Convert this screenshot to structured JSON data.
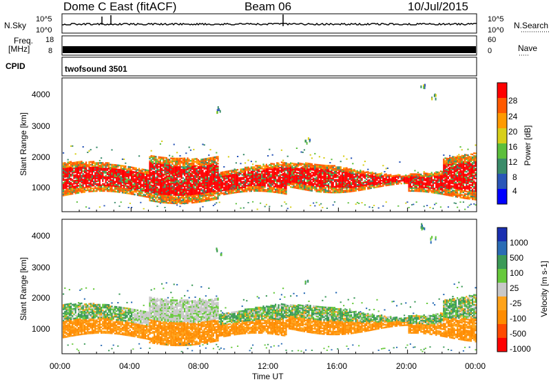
{
  "header": {
    "radar": "Dome C East (fitACF)",
    "beam": "Beam 06",
    "date": "10/Jul/2015"
  },
  "param_panels": {
    "nsky_label": "N.Sky",
    "nsky_ticks": [
      "10^5",
      "10^0"
    ],
    "nsearch_label": "N.Search",
    "nsearch_ticks": [
      "10^5",
      "10^0"
    ],
    "freq_label_1": "Freq.",
    "freq_label_2": "[MHz]",
    "freq_ticks": [
      "18",
      "8"
    ],
    "nave_label": "Nave",
    "nave_ticks": [
      "60",
      "0"
    ],
    "cpid_label": "CPID",
    "cpid_value": "twofsound 3501"
  },
  "colors": {
    "power_scale": [
      "#0000ff",
      "#2a56b8",
      "#3a8c6a",
      "#5cbf3c",
      "#d7cf1a",
      "#ff9a00",
      "#ff5a00",
      "#ff0000"
    ],
    "velocity_scale": [
      "#ff0000",
      "#ff4a00",
      "#ff8c00",
      "#ffa31a",
      "#c8c8c8",
      "#67c93c",
      "#3b9a57",
      "#2a6cb5",
      "#1a2fb0"
    ]
  },
  "chart_data": [
    {
      "type": "heatmap",
      "title": "Power",
      "xlabel": "Time UT",
      "ylabel": "Slant Range [km]",
      "colorbar_label": "Power [dB]",
      "colorbar_ticks": [
        "28",
        "24",
        "20",
        "16",
        "12",
        "8",
        "4"
      ],
      "x_ticks": [
        "00:00",
        "04:00",
        "08:00",
        "12:00",
        "16:00",
        "20:00",
        "00:00"
      ],
      "y_ticks": [
        "4000",
        "3000",
        "2000",
        "1000"
      ],
      "ylim": [
        200,
        4500
      ],
      "xlim_hours": [
        0,
        24
      ],
      "dominant_band_km": [
        600,
        1700
      ],
      "grid": false
    },
    {
      "type": "heatmap",
      "title": "Velocity",
      "xlabel": "Time UT",
      "ylabel": "Slant Range [km]",
      "colorbar_label": "Velocity [m s-1]",
      "colorbar_ticks": [
        "1000",
        "500",
        "100",
        "25",
        "-25",
        "-100",
        "-500",
        "-1000"
      ],
      "x_ticks": [
        "00:00",
        "04:00",
        "08:00",
        "12:00",
        "16:00",
        "20:00",
        "00:00"
      ],
      "y_ticks": [
        "4000",
        "3000",
        "2000",
        "1000"
      ],
      "ylim": [
        200,
        4500
      ],
      "xlim_hours": [
        0,
        24
      ],
      "dominant_band_km": [
        600,
        1700
      ],
      "grid": false
    }
  ],
  "axis": {
    "time_label": "Time UT"
  }
}
